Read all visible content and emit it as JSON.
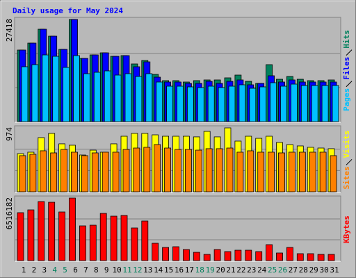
{
  "chart_data": [
    {
      "type": "bar",
      "title": "Daily usage for May 2024",
      "title_color": "#0000ff",
      "ylim": [
        0,
        27418
      ],
      "yticks": [
        27418
      ],
      "grid": true,
      "series": [
        {
          "name": "Hits",
          "color": "#00805c",
          "values": [
            19210,
            21075,
            24805,
            22940,
            19396,
            27418,
            16972,
            17904,
            18464,
            17531,
            17718,
            15480,
            16412,
            12682,
            11004,
            11004,
            10631,
            11004,
            11190,
            11190,
            11750,
            12496,
            10817,
            10258,
            15293,
            11377,
            12123,
            11377,
            11004,
            11004,
            11190
          ]
        },
        {
          "name": "Files",
          "color": "#0000ff",
          "values": [
            19210,
            21075,
            24805,
            22940,
            19396,
            27418,
            16972,
            17904,
            18464,
            17531,
            17718,
            14734,
            16039,
            11936,
            10631,
            10631,
            10258,
            10258,
            10817,
            10258,
            10817,
            11190,
            9885,
            10258,
            12309,
            10631,
            11190,
            10631,
            10631,
            10631,
            10631
          ]
        },
        {
          "name": "Pages",
          "color": "#00c0ff",
          "values": [
            14734,
            15293,
            17904,
            17531,
            14547,
            17718,
            12869,
            13242,
            13615,
            12496,
            12869,
            12123,
            12869,
            10631,
            9512,
            9512,
            9325,
            9139,
            9512,
            9139,
            9512,
            9885,
            8952,
            9325,
            10444,
            9512,
            10071,
            9698,
            9698,
            9698,
            9698
          ]
        }
      ]
    },
    {
      "type": "bar",
      "ylim": [
        0,
        974
      ],
      "yticks": [
        974
      ],
      "grid": true,
      "series": [
        {
          "name": "Visits",
          "color": "#ffff00",
          "values": [
            582,
            604,
            826,
            890,
            731,
            710,
            561,
            635,
            604,
            731,
            847,
            890,
            890,
            868,
            847,
            847,
            847,
            837,
            921,
            837,
            974,
            773,
            847,
            815,
            847,
            752,
            720,
            699,
            678,
            667,
            657
          ]
        },
        {
          "name": "Sites",
          "color": "#ff8000",
          "values": [
            551,
            572,
            625,
            593,
            646,
            604,
            551,
            593,
            604,
            604,
            646,
            667,
            678,
            720,
            667,
            646,
            646,
            635,
            657,
            657,
            667,
            604,
            625,
            604,
            604,
            593,
            604,
            604,
            604,
            604,
            551
          ]
        }
      ]
    },
    {
      "type": "bar",
      "ylim": [
        0,
        6516182
      ],
      "yticks": [
        6516182
      ],
      "grid": true,
      "series": [
        {
          "name": "KBytes",
          "color": "#ff0000",
          "values": [
            4995738,
            5285346,
            6154170,
            6081768,
            5068140,
            6516182,
            3620100,
            3692502,
            4923336,
            4633728,
            4706130,
            3402894,
            4126914,
            1810050,
            1375638,
            1448040,
            1158432,
            868824,
            651618,
            1158432,
            941226,
            1086030,
            1086030,
            941226,
            1665246,
            796422,
            1375638,
            724020,
            724020,
            651618,
            651618
          ]
        }
      ],
      "categories": [
        "1",
        "2",
        "3",
        "4",
        "5",
        "6",
        "7",
        "8",
        "9",
        "10",
        "11",
        "12",
        "13",
        "14",
        "15",
        "16",
        "17",
        "18",
        "19",
        "20",
        "21",
        "22",
        "23",
        "24",
        "25",
        "26",
        "27",
        "28",
        "29",
        "30",
        "31"
      ],
      "category_colors": [
        "#000000",
        "#000000",
        "#000000",
        "#00805c",
        "#00805c",
        "#000000",
        "#000000",
        "#000000",
        "#000000",
        "#000000",
        "#00805c",
        "#00805c",
        "#000000",
        "#000000",
        "#000000",
        "#000000",
        "#000000",
        "#00805c",
        "#00805c",
        "#000000",
        "#000000",
        "#000000",
        "#000000",
        "#000000",
        "#00805c",
        "#00805c",
        "#000000",
        "#000000",
        "#000000",
        "#000000",
        "#000000"
      ]
    }
  ]
}
